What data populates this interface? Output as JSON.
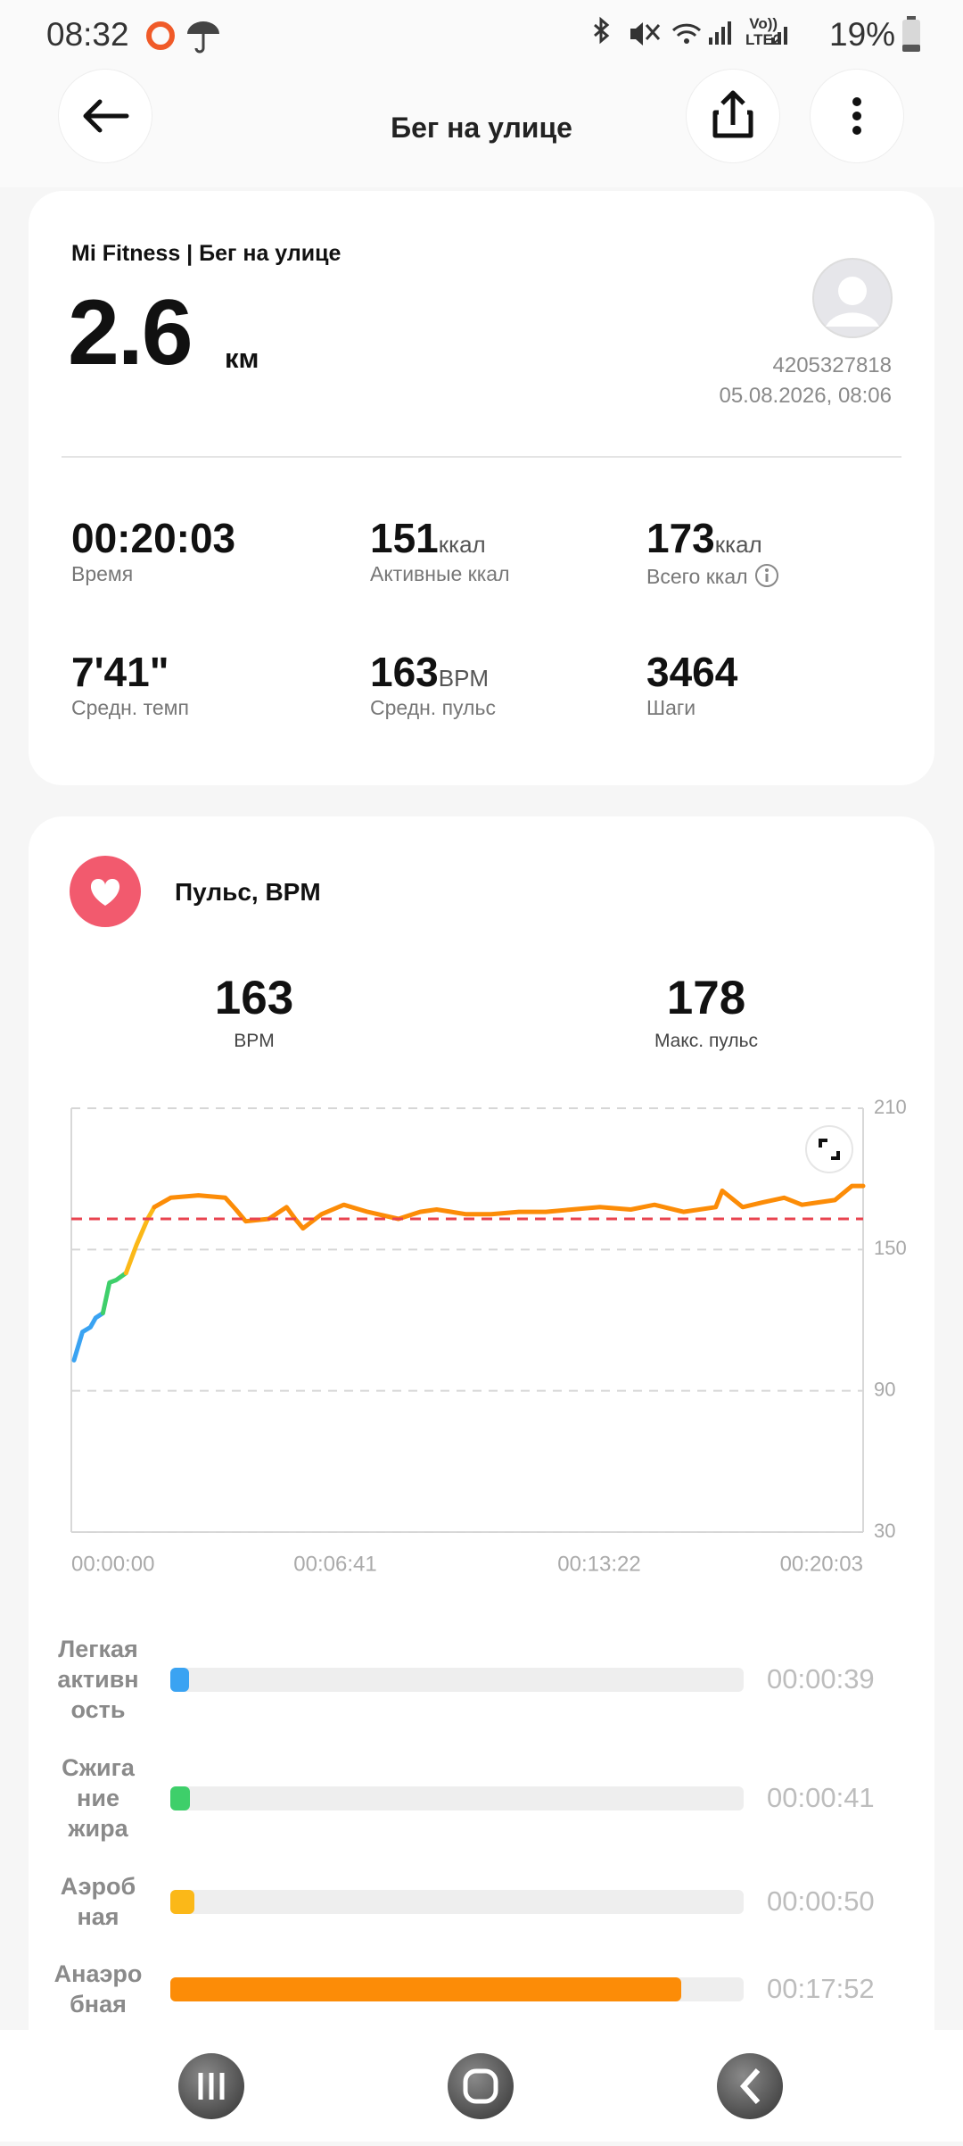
{
  "status_bar": {
    "time": "08:32",
    "network": [
      "Vo))",
      "LTE2"
    ],
    "battery": "19%"
  },
  "header": {
    "title": "Бег на улице"
  },
  "summary": {
    "source": "Mi Fitness | Бег на улице",
    "distance": "2.6",
    "distance_unit": "км",
    "user_id": "4205327818",
    "datetime": "05.08.2026, 08:06",
    "stats": [
      {
        "value": "00:20:03",
        "label": "Время"
      },
      {
        "value": "151",
        "unit": "ккал",
        "label": "Активные ккал"
      },
      {
        "value": "173",
        "unit": "ккал",
        "label": "Всего ккал"
      },
      {
        "value": "7'41\"",
        "label": "Средн. темп"
      },
      {
        "value": "163",
        "unit": "BPM",
        "label": "Средн. пульс"
      },
      {
        "value": "3464",
        "label": "Шаги"
      }
    ]
  },
  "heart_rate": {
    "title": "Пульс, BPM",
    "average": 163,
    "average_unit": "BPM",
    "max": 178,
    "max_label": "Макс. пульс",
    "chart": {
      "type": "line",
      "xlim": [
        0,
        1203
      ],
      "xticks": [
        {
          "value": 0,
          "label": "00:00:00"
        },
        {
          "value": 401,
          "label": "00:06:41"
        },
        {
          "value": 802,
          "label": "00:13:22"
        },
        {
          "value": 1203,
          "label": "00:20:03"
        }
      ],
      "ylim": [
        30,
        210
      ],
      "yticks": [
        30,
        90,
        150,
        210
      ],
      "grid": true,
      "average_line_color": "#e8434f",
      "series": [
        {
          "color": "#3aa3f2",
          "x": [
            4,
            17,
            29,
            37,
            48
          ],
          "values": [
            103,
            115,
            117,
            121,
            123
          ]
        },
        {
          "color": "#3ecf6a",
          "x": [
            48,
            58,
            68,
            83
          ],
          "values": [
            123,
            136,
            137,
            140
          ]
        },
        {
          "color": "#fbb818",
          "x": [
            83,
            99,
            116,
            126
          ],
          "values": [
            140,
            152,
            163,
            168
          ]
        },
        {
          "color": "#fc8c07",
          "x": [
            126,
            151,
            193,
            234,
            250,
            265,
            300,
            327,
            340,
            352,
            380,
            414,
            450,
            497,
            530,
            555,
            600,
            638,
            680,
            721,
            760,
            803,
            850,
            886,
            930,
            979,
            989,
            1020,
            1050,
            1083,
            1110,
            1134,
            1160,
            1186,
            1203
          ],
          "values": [
            168,
            172,
            173,
            172,
            167,
            162,
            163,
            168,
            163,
            159,
            165,
            169,
            166,
            163,
            166,
            167,
            165,
            165,
            166,
            166,
            167,
            168,
            167,
            169,
            166,
            168,
            175,
            168,
            170,
            172,
            169,
            170,
            171,
            177,
            177
          ]
        }
      ]
    },
    "zones": [
      {
        "label": [
          "Легкая",
          "активн",
          "ость"
        ],
        "color": "#3aa3f2",
        "time": {
          "value": 39,
          "label": "00:00:39"
        }
      },
      {
        "label": [
          "Сжига",
          "ние",
          "жира"
        ],
        "color": "#3ecf6a",
        "time": {
          "value": 41,
          "label": "00:00:41"
        }
      },
      {
        "label": [
          "Аэроб",
          "ная"
        ],
        "color": "#fbb818",
        "time": {
          "value": 50,
          "label": "00:00:50"
        }
      },
      {
        "label": [
          "Анаэро",
          "бная"
        ],
        "color": "#fc8c07",
        "time": {
          "value": 1072,
          "label": "00:17:52"
        }
      }
    ]
  }
}
